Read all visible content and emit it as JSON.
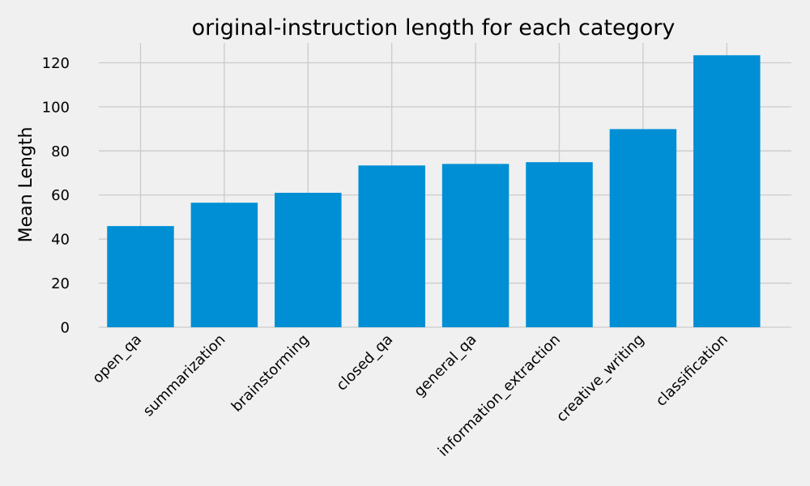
{
  "chart_data": {
    "type": "bar",
    "title": "original-instruction length for each category",
    "xlabel": "",
    "ylabel": "Mean Length",
    "categories": [
      "open_qa",
      "summarization",
      "brainstorming",
      "closed_qa",
      "general_qa",
      "information_extraction",
      "creative_writing",
      "classification"
    ],
    "values": [
      45.9,
      56.5,
      61.0,
      73.4,
      74.1,
      74.9,
      89.9,
      123.4
    ],
    "ylim": [
      0,
      129
    ],
    "yticks": [
      0,
      20,
      40,
      60,
      80,
      100,
      120
    ],
    "grid": true,
    "legend": "none",
    "bar_color": "#008fd5",
    "background": "#f0f0f0",
    "grid_color": "#cbcbcb"
  }
}
